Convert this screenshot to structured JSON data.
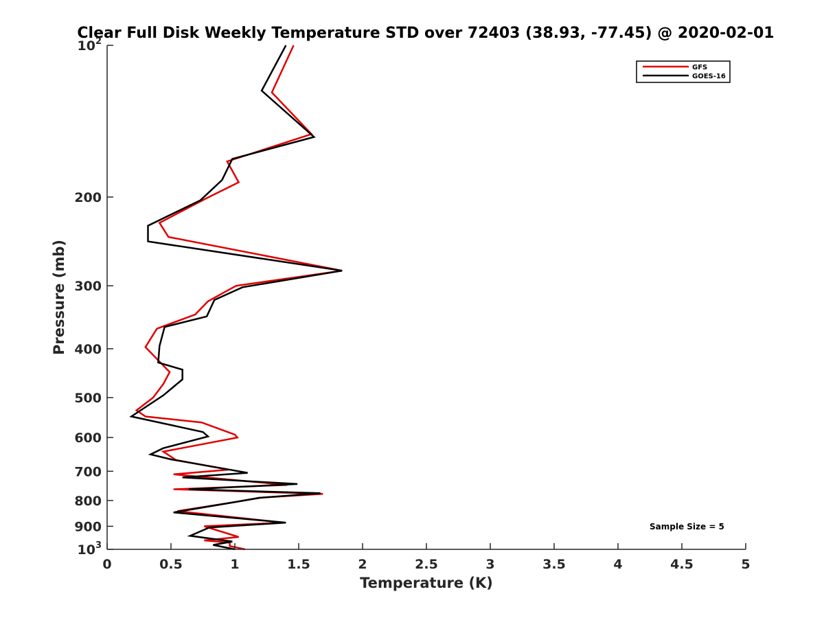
{
  "chart_data": {
    "type": "line",
    "title": "Clear Full Disk Weekly Temperature STD over 72403 (38.93, -77.45) @ 2020-02-01",
    "xlabel": "Temperature (K)",
    "ylabel": "Pressure (mb)",
    "xlim": [
      0,
      5
    ],
    "ylim": [
      100,
      1000
    ],
    "y_scale": "log",
    "y_reversed": true,
    "grid": false,
    "legend_position": "top-right",
    "x_ticks": [
      {
        "value": 0,
        "label": "0"
      },
      {
        "value": 0.5,
        "label": "0.5"
      },
      {
        "value": 1,
        "label": "1"
      },
      {
        "value": 1.5,
        "label": "1.5"
      },
      {
        "value": 2,
        "label": "2"
      },
      {
        "value": 2.5,
        "label": "2.5"
      },
      {
        "value": 3,
        "label": "3"
      },
      {
        "value": 3.5,
        "label": "3.5"
      },
      {
        "value": 4,
        "label": "4"
      },
      {
        "value": 4.5,
        "label": "4.5"
      },
      {
        "value": 5,
        "label": "5"
      }
    ],
    "y_ticks": [
      {
        "value": 100,
        "base": "10",
        "exp": "2"
      },
      {
        "value": 200,
        "label": "200"
      },
      {
        "value": 300,
        "label": "300"
      },
      {
        "value": 400,
        "label": "400"
      },
      {
        "value": 500,
        "label": "500"
      },
      {
        "value": 600,
        "label": "600"
      },
      {
        "value": 700,
        "label": "700"
      },
      {
        "value": 800,
        "label": "800"
      },
      {
        "value": 900,
        "label": "900"
      },
      {
        "value": 1000,
        "base": "10",
        "exp": "3"
      }
    ],
    "annotation": "Sample Size = 5",
    "series": [
      {
        "name": "GFS",
        "color": "#e00000",
        "points": [
          [
            1.46,
            100
          ],
          [
            1.29,
            124
          ],
          [
            1.6,
            150
          ],
          [
            0.94,
            170
          ],
          [
            1.03,
            187
          ],
          [
            0.78,
            201
          ],
          [
            0.41,
            225
          ],
          [
            0.48,
            240
          ],
          [
            1.84,
            280
          ],
          [
            1.01,
            300
          ],
          [
            0.79,
            322
          ],
          [
            0.69,
            342
          ],
          [
            0.39,
            365
          ],
          [
            0.3,
            397
          ],
          [
            0.49,
            445
          ],
          [
            0.44,
            470
          ],
          [
            0.36,
            500
          ],
          [
            0.23,
            530
          ],
          [
            0.3,
            545
          ],
          [
            0.74,
            560
          ],
          [
            1.0,
            592
          ],
          [
            1.02,
            600
          ],
          [
            0.44,
            640
          ],
          [
            0.54,
            665
          ],
          [
            0.95,
            695
          ],
          [
            0.52,
            710
          ],
          [
            1.41,
            745
          ],
          [
            0.52,
            760
          ],
          [
            1.69,
            776
          ],
          [
            1.19,
            790
          ],
          [
            1.01,
            805
          ],
          [
            0.55,
            840
          ],
          [
            1.38,
            885
          ],
          [
            0.76,
            900
          ],
          [
            1.03,
            945
          ],
          [
            0.76,
            960
          ],
          [
            0.96,
            970
          ],
          [
            0.96,
            985
          ],
          [
            1.08,
            1000
          ]
        ]
      },
      {
        "name": "GOES-16",
        "color": "#000000",
        "points": [
          [
            1.4,
            100
          ],
          [
            1.21,
            123
          ],
          [
            1.62,
            152
          ],
          [
            0.98,
            168
          ],
          [
            0.9,
            185
          ],
          [
            0.73,
            203
          ],
          [
            0.32,
            228
          ],
          [
            0.32,
            245
          ],
          [
            1.84,
            280
          ],
          [
            1.06,
            302
          ],
          [
            0.84,
            320
          ],
          [
            0.78,
            345
          ],
          [
            0.45,
            362
          ],
          [
            0.41,
            395
          ],
          [
            0.4,
            426
          ],
          [
            0.59,
            440
          ],
          [
            0.59,
            460
          ],
          [
            0.44,
            495
          ],
          [
            0.19,
            545
          ],
          [
            0.75,
            585
          ],
          [
            0.79,
            597
          ],
          [
            0.44,
            630
          ],
          [
            0.34,
            648
          ],
          [
            0.5,
            663
          ],
          [
            0.89,
            690
          ],
          [
            1.1,
            705
          ],
          [
            0.59,
            720
          ],
          [
            1.49,
            742
          ],
          [
            0.64,
            760
          ],
          [
            1.67,
            774
          ],
          [
            1.2,
            790
          ],
          [
            0.52,
            845
          ],
          [
            1.4,
            885
          ],
          [
            0.8,
            905
          ],
          [
            0.65,
            940
          ],
          [
            0.98,
            965
          ],
          [
            0.83,
            980
          ],
          [
            1.0,
            1000
          ]
        ]
      }
    ]
  }
}
